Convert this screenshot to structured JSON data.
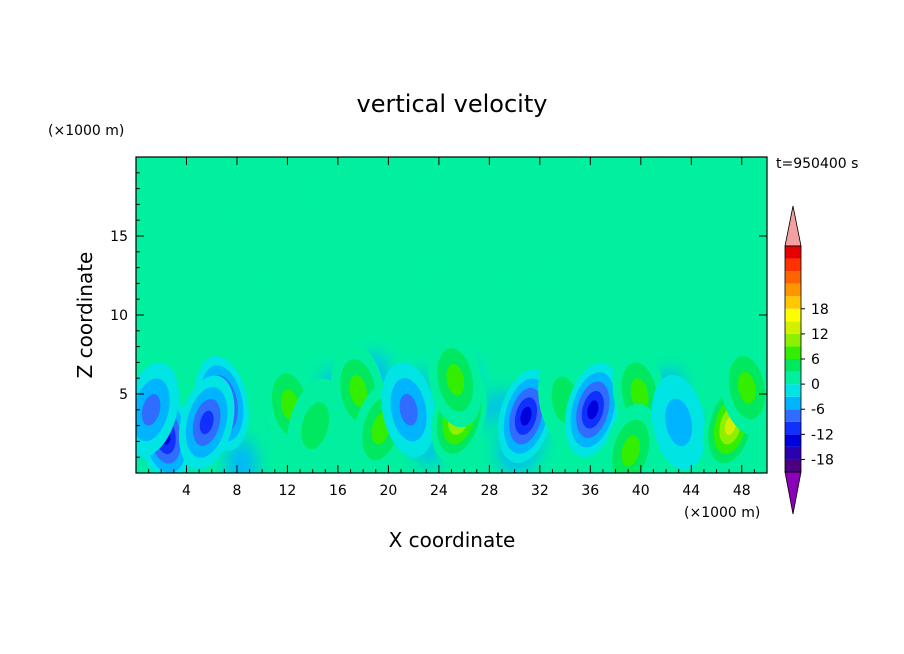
{
  "chart_data": {
    "type": "heatmap",
    "title": "vertical velocity",
    "xlabel": "X coordinate",
    "ylabel": "Z coordinate",
    "x_units": "(×1000 m)",
    "z_units": "(×1000 m)",
    "time_label": "t=950400 s",
    "xlim": [
      0,
      50
    ],
    "zlim": [
      0,
      20
    ],
    "x_ticks": [
      4,
      8,
      12,
      16,
      20,
      24,
      28,
      32,
      36,
      40,
      44,
      48
    ],
    "z_ticks": [
      5,
      10,
      15
    ],
    "colorbar": {
      "ticks": [
        18,
        12,
        6,
        0,
        -6,
        -12,
        -18
      ],
      "level_min": -21,
      "level_step": 3,
      "colors": [
        "#4b0082",
        "#2a00b0",
        "#0000dc",
        "#1030ff",
        "#2f6cff",
        "#00b4ff",
        "#00e4e4",
        "#00f0a0",
        "#00e860",
        "#33ee00",
        "#8cf000",
        "#d2f000",
        "#ffff00",
        "#ffc800",
        "#ff9600",
        "#ff6400",
        "#ff3200",
        "#e60000"
      ],
      "under_color": "#8b00b8",
      "over_color": "#f4a0a0"
    },
    "features": [
      {
        "x": 2.3,
        "z": 2.4,
        "w": -15
      },
      {
        "x": 1.2,
        "z": 4.0,
        "w": -9
      },
      {
        "x": 6.8,
        "z": 4.4,
        "w": -13
      },
      {
        "x": 5.6,
        "z": 3.2,
        "w": -12
      },
      {
        "x": 12.2,
        "z": 4.3,
        "w": 8
      },
      {
        "x": 14.2,
        "z": 3.0,
        "w": 5
      },
      {
        "x": 17.6,
        "z": 5.2,
        "w": 8
      },
      {
        "x": 19.4,
        "z": 2.8,
        "w": 9
      },
      {
        "x": 21.6,
        "z": 4.0,
        "w": -8
      },
      {
        "x": 25.6,
        "z": 3.6,
        "w": 15
      },
      {
        "x": 25.3,
        "z": 5.9,
        "w": 9
      },
      {
        "x": 30.9,
        "z": 3.6,
        "w": -14
      },
      {
        "x": 34.0,
        "z": 4.6,
        "w": 6
      },
      {
        "x": 36.2,
        "z": 4.0,
        "w": -13
      },
      {
        "x": 39.9,
        "z": 5.0,
        "w": 8
      },
      {
        "x": 39.2,
        "z": 1.4,
        "w": 9
      },
      {
        "x": 43.0,
        "z": 3.2,
        "w": -6
      },
      {
        "x": 47.1,
        "z": 3.0,
        "w": 13
      },
      {
        "x": 48.4,
        "z": 5.4,
        "w": 7
      }
    ],
    "grid": false,
    "colorbar_position": "right"
  }
}
